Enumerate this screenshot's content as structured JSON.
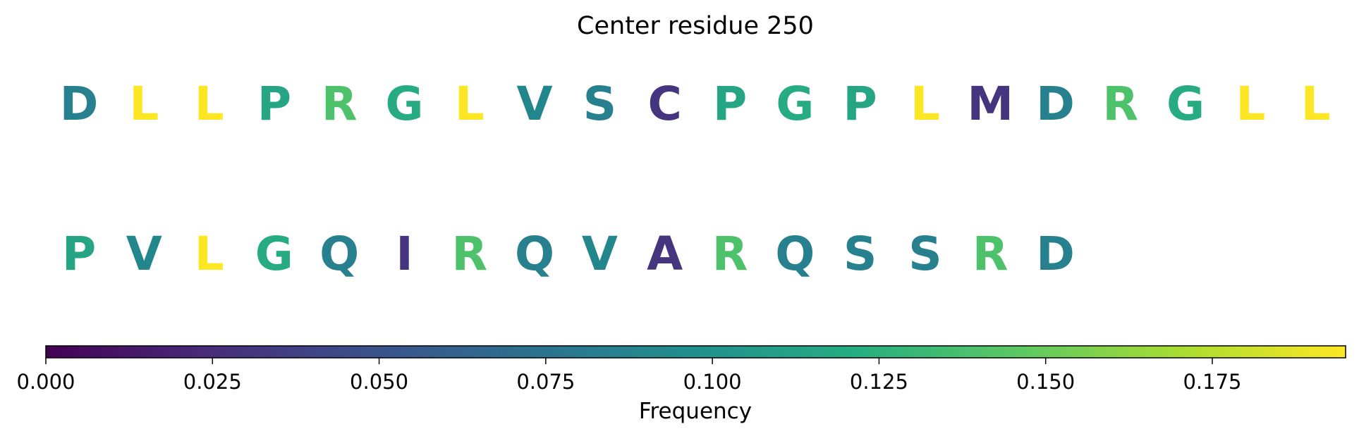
{
  "chart_data": {
    "type": "sequence-colorbar",
    "title": "Center residue 250",
    "rows": [
      {
        "residues": [
          "D",
          "L",
          "L",
          "P",
          "R",
          "G",
          "L",
          "V",
          "S",
          "C",
          "P",
          "G",
          "P",
          "L",
          "M",
          "D",
          "R",
          "G",
          "L",
          "L"
        ],
        "values": [
          0.085,
          0.195,
          0.195,
          0.115,
          0.14,
          0.12,
          0.195,
          0.09,
          0.085,
          0.03,
          0.115,
          0.12,
          0.115,
          0.195,
          0.03,
          0.085,
          0.14,
          0.12,
          0.195,
          0.195
        ]
      },
      {
        "residues": [
          "P",
          "V",
          "L",
          "G",
          "Q",
          "I",
          "R",
          "Q",
          "V",
          "A",
          "R",
          "Q",
          "S",
          "S",
          "R",
          "D"
        ],
        "values": [
          0.115,
          0.09,
          0.195,
          0.12,
          0.085,
          0.03,
          0.14,
          0.085,
          0.09,
          0.03,
          0.14,
          0.085,
          0.085,
          0.085,
          0.14,
          0.085
        ]
      }
    ],
    "colormap": "viridis",
    "colorbar": {
      "label": "Frequency",
      "range": [
        0,
        0.195
      ],
      "ticks": [
        "0.000",
        "0.025",
        "0.050",
        "0.075",
        "0.100",
        "0.125",
        "0.150",
        "0.175"
      ]
    }
  }
}
